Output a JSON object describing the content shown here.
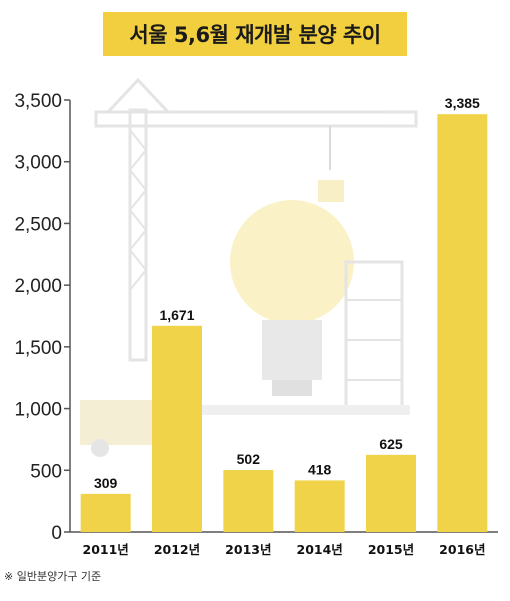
{
  "title": "서울 5,6월 재개발 분양 추이",
  "footnote": "※ 일반분양가구 기준",
  "colors": {
    "bar": "#f0d349",
    "title_bg": "#f2cf3f",
    "illustration": "#d9d9d9",
    "bulb": "#f7e79a"
  },
  "chart_data": {
    "type": "bar",
    "title": "서울 5,6월 재개발 분양 추이",
    "categories": [
      "2011년",
      "2012년",
      "2013년",
      "2014년",
      "2015년",
      "2016년"
    ],
    "values": [
      309,
      1671,
      502,
      418,
      625,
      3385
    ],
    "value_labels": [
      "309",
      "1,671",
      "502",
      "418",
      "625",
      "3,385"
    ],
    "ylim": [
      0,
      3500
    ],
    "yticks": [
      0,
      500,
      1000,
      1500,
      2000,
      2500,
      3000,
      3500
    ],
    "ytick_labels": [
      "0",
      "500",
      "1,000",
      "1,500",
      "2,000",
      "2,500",
      "3,000",
      "3,500"
    ],
    "grid": false,
    "xlabel": "",
    "ylabel": ""
  }
}
